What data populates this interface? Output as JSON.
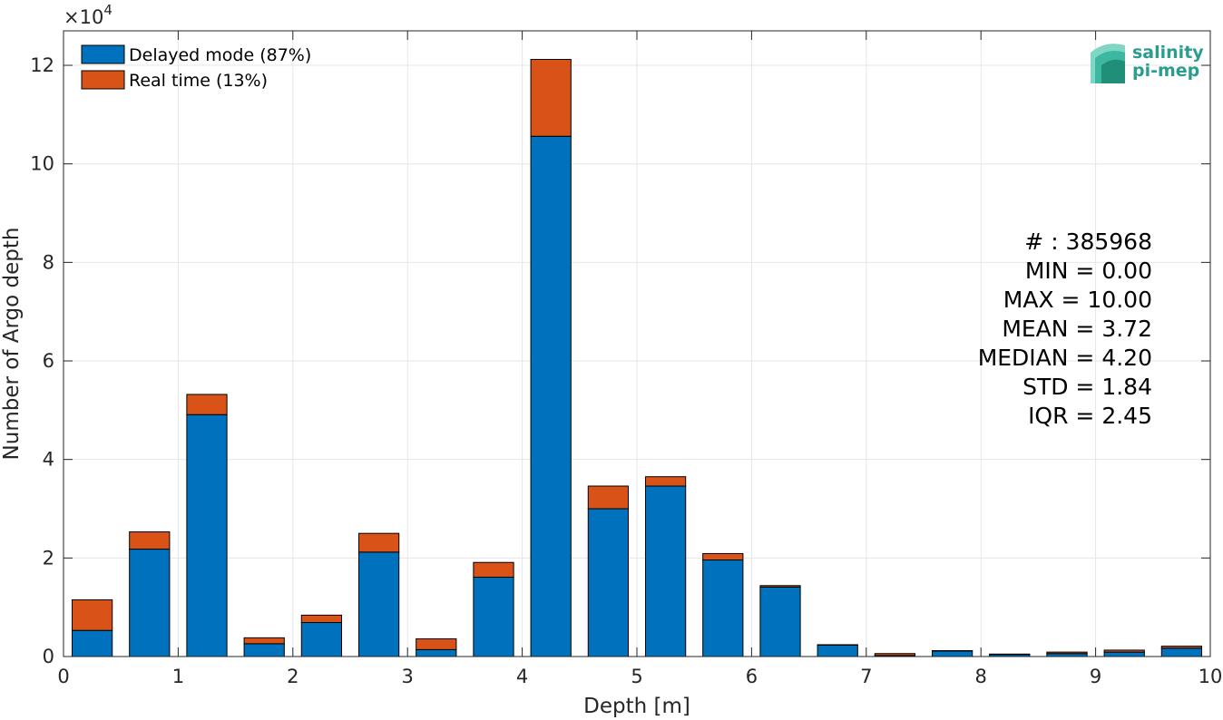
{
  "chart_data": {
    "type": "bar",
    "stacked": true,
    "xlabel": "Depth [m]",
    "ylabel": "Number of Argo depth",
    "xlim": [
      0,
      10
    ],
    "ylim": [
      0,
      127000
    ],
    "y_exponent_label": "×10",
    "y_exponent_power": "4",
    "x_ticks": [
      "0",
      "1",
      "2",
      "3",
      "4",
      "5",
      "6",
      "7",
      "8",
      "9",
      "10"
    ],
    "y_ticks": [
      "0",
      "2",
      "4",
      "6",
      "8",
      "10",
      "12"
    ],
    "bin_centers": [
      0.25,
      0.75,
      1.25,
      1.75,
      2.25,
      2.75,
      3.25,
      3.75,
      4.25,
      4.75,
      5.25,
      5.75,
      6.25,
      6.75,
      7.25,
      7.75,
      8.25,
      8.75,
      9.25,
      9.75
    ],
    "series": [
      {
        "name": "Delayed mode (87%)",
        "color": "#0072BD",
        "values": [
          5300,
          21800,
          49100,
          2600,
          6900,
          21200,
          1400,
          16100,
          105600,
          30000,
          34600,
          19600,
          14100,
          2300,
          200,
          1100,
          400,
          600,
          900,
          1700
        ]
      },
      {
        "name": "Real time (13%)",
        "color": "#D95319",
        "values": [
          6200,
          3500,
          4100,
          1200,
          1500,
          3800,
          2200,
          3000,
          15600,
          4600,
          1900,
          1300,
          300,
          100,
          400,
          100,
          100,
          300,
          400,
          400
        ]
      }
    ],
    "grid": true,
    "legend_position": "top-left",
    "stats": [
      "# : 385968",
      "MIN = 0.00",
      "MAX =  10.00",
      "MEAN = 3.72",
      "MEDIAN = 4.20",
      "STD = 1.84",
      "IQR = 2.45"
    ]
  },
  "logo": {
    "line1": "salinity",
    "line2": "pi-mep",
    "color": "#2a9d8f"
  }
}
